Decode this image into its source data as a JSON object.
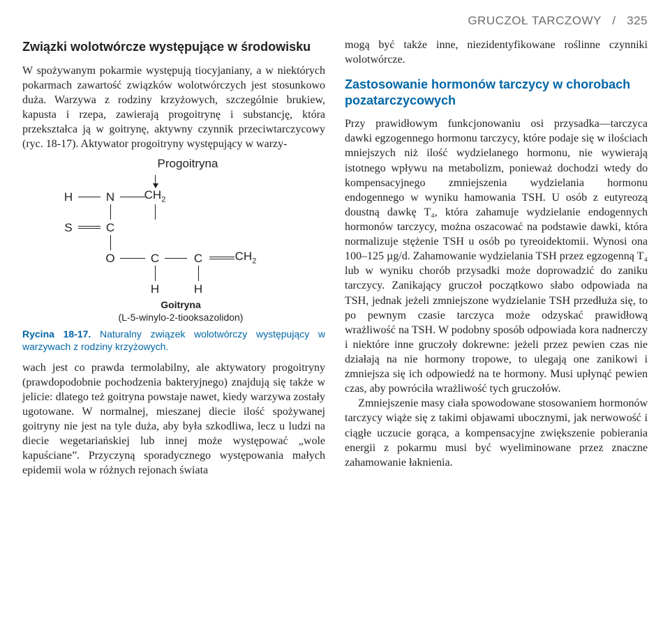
{
  "running_head": {
    "title": "GRUCZOŁ TARCZOWY",
    "sep": "/",
    "page": "325"
  },
  "left": {
    "heading": "Związki wolotwórcze występujące w środowisku",
    "para1": "W spożywanym pokarmie występują tiocyjaniany, a w niektórych pokarmach zawartość związków wolotwórczych jest stosunkowo duża. Warzywa z rodziny krzyżowych, szczególnie brukiew, kapusta i rzepa, zawierają progoitrynę i substancję, która przekształca ją w goitrynę, aktywny czynnik przeciwtarczycowy (ryc. 18-17). Aktywator progoitryny występujący w warzy-",
    "para2": "wach jest co prawda termolabilny, ale aktywatory progoitryny (prawdopodobnie pochodzenia bakteryjnego) znajdują się także w jelicie: dlatego też goitryna powstaje nawet, kiedy warzywa zostały ugotowane. W normalnej, mieszanej diecie ilość spożywanej goitryny nie jest na tyle duża, aby była szkodliwa, lecz u ludzi na diecie wegetariańskiej lub innej może występować „wole kapuściane”. Przyczyną sporadycznego występowania małych epidemii wola w różnych rejonach świata",
    "figure": {
      "top_label": "Progoitryna",
      "atoms": {
        "H": "H",
        "N": "N",
        "CH2": "CH<sub>2</sub>",
        "S": "S",
        "C": "C",
        "O": "O",
        "CH2b": "CH<sub>2</sub>",
        "Hb": "H",
        "Hc": "H"
      },
      "name": "Goitryna",
      "iupac": "(L-5-winylo-2-tiooksazolidon)",
      "caption_ref": "Rycina 18-17.",
      "caption_text": " Naturalny związek wolotwórczy występujący w warzywach z rodziny krzyżowych."
    }
  },
  "right": {
    "para0": "mogą być także inne, niezidentyfikowane roślinne czynniki wolotwórcze.",
    "subhead": "Zastosowanie hormonów tarczycy w chorobach pozatarczycowych",
    "para1": "Przy prawidłowym funkcjonowaniu osi przysadka––tarczyca dawki egzogennego hormonu tarczycy, które podaje się w ilościach mniejszych niż ilość wydzielanego hormonu, nie wywierają istotnego wpływu na metabolizm, ponieważ dochodzi wtedy do kompensacyjnego zmniejszenia wydzielania hormonu endogennego w wyniku hamowania TSH. U osób z eutyreozą doustną dawkę T₄, która zahamuje wydzielanie endogennych hormonów tarczycy, można oszacować na podstawie dawki, która normalizuje stężenie TSH u osób po tyreoidektomii. Wynosi ona 100–125 µg/d. Zahamowanie wydzielania TSH przez egzogenną T₄ lub w wyniku chorób przysadki może doprowadzić do zaniku tarczycy. Zanikający gruczoł początkowo słabo odpowiada na TSH, jednak jeżeli zmniejszone wydzielanie TSH przedłuża się, to po pewnym czasie tarczyca może odzyskać prawidłową wrażliwość na TSH. W podobny sposób odpowiada kora nadnerczy i niektóre inne gruczoły dokrewne: jeżeli przez pewien czas nie działają na nie hormony tropowe, to ulegają one zanikowi i zmniejsza się ich odpowiedź na te hormony. Musi upłynąć pewien czas, aby powróciła wrażliwość tych gruczołów.",
    "para2": "Zmniejszenie masy ciała spowodowane stosowaniem hormonów tarczycy wiąże się z takimi objawami ubocznymi, jak nerwowość i ciągłe uczucie gorąca, a kompensacyjne zwiększenie pobierania energii z pokarmu musi być wyeliminowane przez znaczne zahamowanie łaknienia."
  },
  "colors": {
    "text": "#231f20",
    "accent": "#0066a6",
    "muted": "#6d6e71",
    "bg": "#ffffff"
  },
  "typography": {
    "body_family": "Book Antiqua / Palatino (serif)",
    "heading_family": "Arial / Helvetica (sans-serif)",
    "body_size_pt": 11,
    "heading_size_pt": 12,
    "caption_size_pt": 9
  }
}
